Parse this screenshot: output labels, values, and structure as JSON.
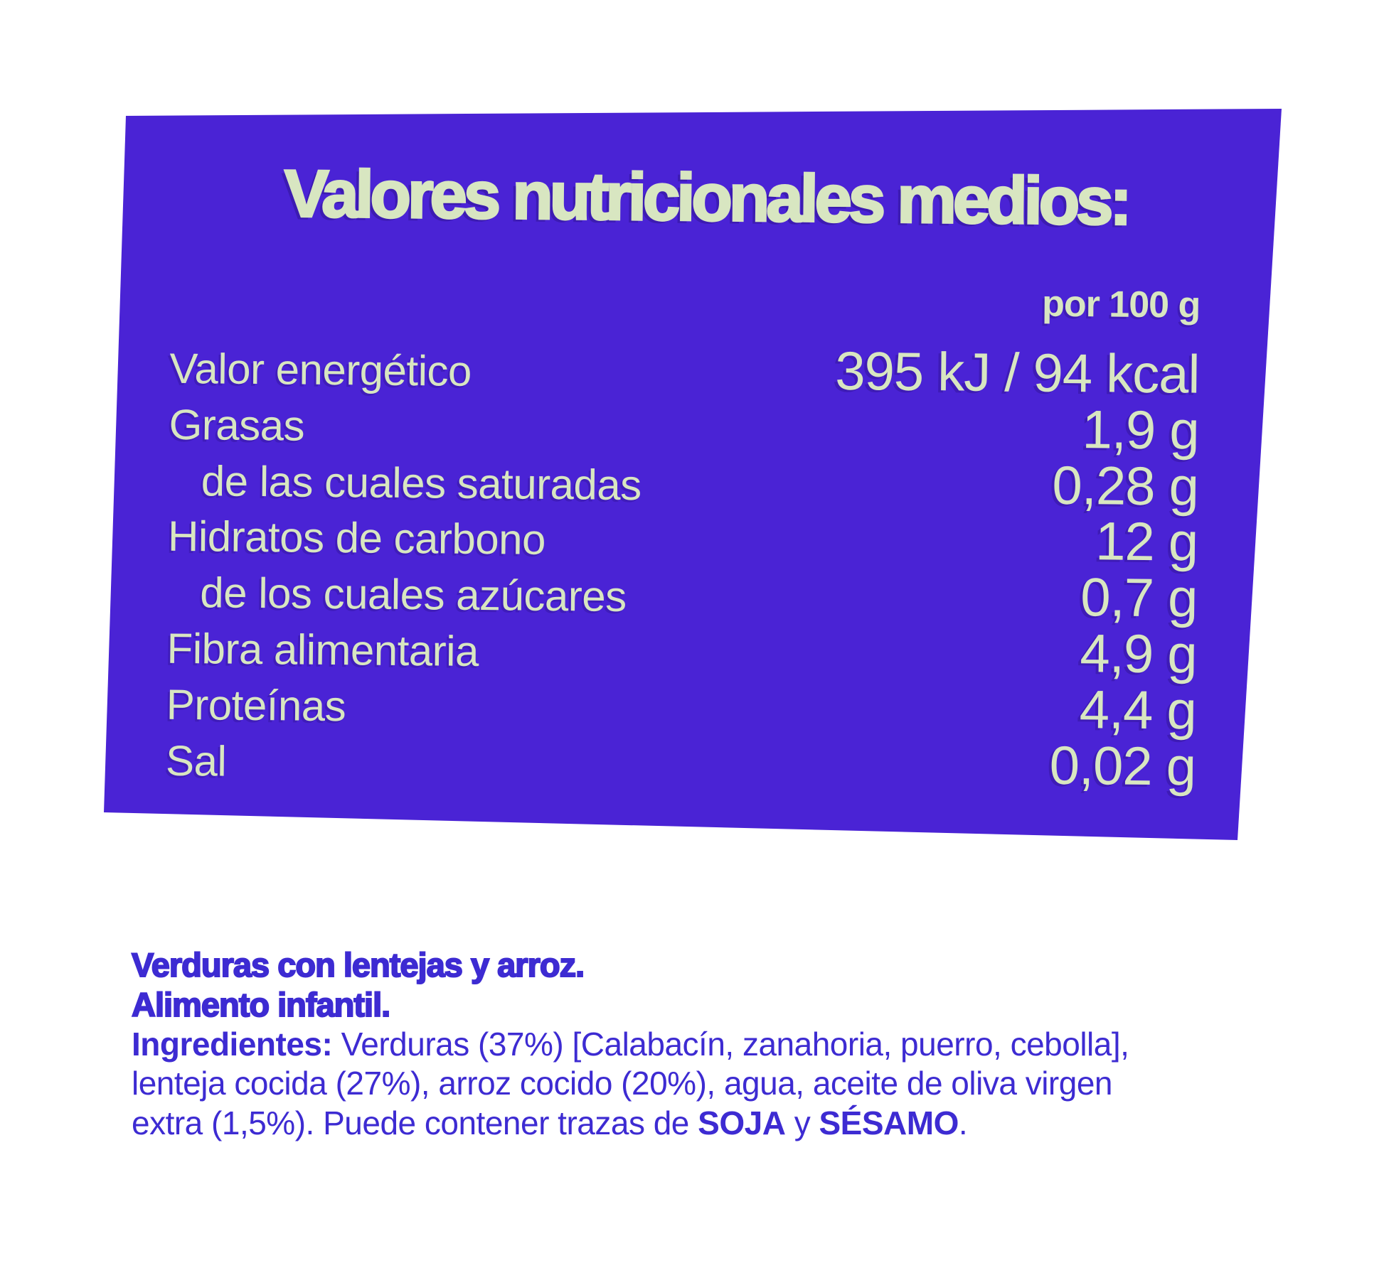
{
  "panel": {
    "title": "Valores nutricionales medios:",
    "per_header": "por 100 g",
    "rows": [
      {
        "label": "Valor energético",
        "value": "395 kJ / 94 kcal",
        "indent": false
      },
      {
        "label": "Grasas",
        "value": "1,9 g",
        "indent": false
      },
      {
        "label": "de las cuales saturadas",
        "value": "0,28 g",
        "indent": true
      },
      {
        "label": "Hidratos de carbono",
        "value": "12 g",
        "indent": false
      },
      {
        "label": "de los cuales azúcares",
        "value": "0,7 g",
        "indent": true
      },
      {
        "label": "Fibra alimentaria",
        "value": "4,9 g",
        "indent": false
      },
      {
        "label": "Proteínas",
        "value": "4,4 g",
        "indent": false
      },
      {
        "label": "Sal",
        "value": "0,02 g",
        "indent": false
      }
    ],
    "colors": {
      "panel_background": "#4A23D5",
      "panel_text": "#D8E6C1"
    }
  },
  "footer": {
    "product_name": "Verduras con lentejas y arroz.",
    "product_type": "Alimento infantil.",
    "ingredients_lines": [
      [
        {
          "t": "Ingredientes:",
          "b": true
        },
        {
          "t": " Verduras (37%) [Calabacín, zanahoria, puerro, cebolla],",
          "b": false
        }
      ],
      [
        {
          "t": "lenteja cocida (27%), arroz cocido (20%), agua, aceite de oliva virgen",
          "b": false
        }
      ],
      [
        {
          "t": "extra (1,5%). Puede contener trazas de ",
          "b": false
        },
        {
          "t": "SOJA",
          "b": true
        },
        {
          "t": " y ",
          "b": false
        },
        {
          "t": "SÉSAMO",
          "b": true
        },
        {
          "t": ".",
          "b": false
        }
      ]
    ],
    "color": "#3D2BD2"
  }
}
